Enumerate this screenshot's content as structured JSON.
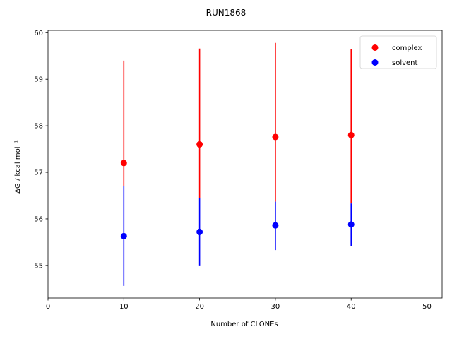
{
  "chart_data": {
    "type": "scatter",
    "title": "RUN1868",
    "xlabel": "Number of CLONEs",
    "ylabel": "ΔG / kcal mol⁻¹",
    "xlim": [
      0,
      52
    ],
    "ylim": [
      54.3,
      60.05
    ],
    "xticks": [
      0,
      10,
      20,
      30,
      40,
      50
    ],
    "yticks": [
      55,
      56,
      57,
      58,
      59,
      60
    ],
    "grid": false,
    "legend_position": "top-right",
    "series": [
      {
        "name": "complex",
        "color": "#ff0000",
        "x": [
          10,
          20,
          30,
          40
        ],
        "y": [
          57.2,
          57.6,
          57.76,
          57.8
        ],
        "yerr_low": [
          56.7,
          56.45,
          56.37,
          56.33
        ],
        "yerr_high": [
          59.4,
          59.66,
          59.78,
          59.65
        ]
      },
      {
        "name": "solvent",
        "color": "#0000ff",
        "x": [
          10,
          20,
          30,
          40
        ],
        "y": [
          55.63,
          55.72,
          55.86,
          55.88
        ],
        "yerr_low": [
          54.56,
          55.0,
          55.33,
          55.42
        ],
        "yerr_high": [
          56.7,
          56.45,
          56.37,
          56.33
        ]
      }
    ]
  }
}
